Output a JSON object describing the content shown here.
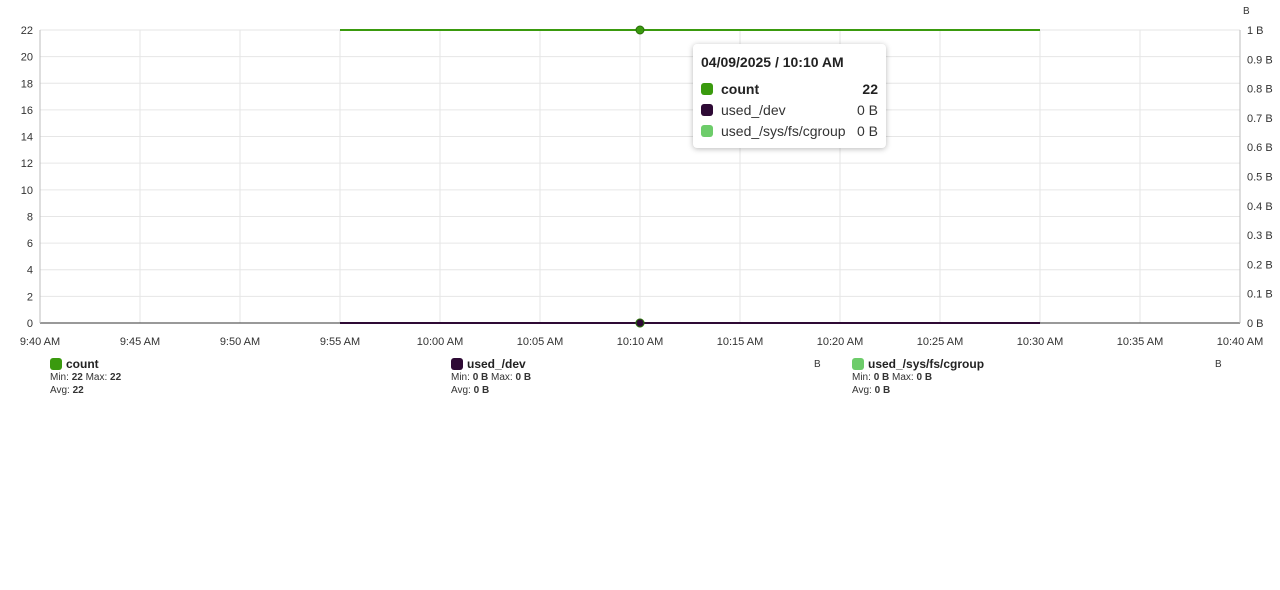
{
  "chart_data": {
    "type": "line",
    "x": [
      "9:40 AM",
      "9:45 AM",
      "9:50 AM",
      "9:55 AM",
      "10:00 AM",
      "10:05 AM",
      "10:10 AM",
      "10:15 AM",
      "10:20 AM",
      "10:25 AM",
      "10:30 AM",
      "10:35 AM",
      "10:40 AM"
    ],
    "y_left": {
      "ticks": [
        0,
        2,
        4,
        6,
        8,
        10,
        12,
        14,
        16,
        18,
        20,
        22
      ],
      "ylim": [
        0,
        22
      ]
    },
    "y_right": {
      "unit": "B",
      "ticks": [
        "0 B",
        "0.1 B",
        "0.2 B",
        "0.3 B",
        "0.4 B",
        "0.5 B",
        "0.6 B",
        "0.7 B",
        "0.8 B",
        "0.9 B",
        "1 B"
      ],
      "ylim": [
        0,
        1
      ]
    },
    "grid": true,
    "series": [
      {
        "name": "count",
        "color": "#3a9a0e",
        "axis": "left",
        "x_start": "9:55 AM",
        "x_end": "10:30 AM",
        "value": 22
      },
      {
        "name": "used_/dev",
        "color": "#2e0a35",
        "axis": "right",
        "x_start": "9:55 AM",
        "x_end": "10:30 AM",
        "value": 0
      },
      {
        "name": "used_/sys/fs/cgroup",
        "color": "#6dcc6a",
        "axis": "right",
        "x_start": "9:55 AM",
        "x_end": "10:30 AM",
        "value": 0
      }
    ],
    "highlight_x": "10:10 AM"
  },
  "legend": [
    {
      "name": "count",
      "min_label": "Min:",
      "min": "22",
      "max_label": "Max:",
      "max": "22",
      "avg_label": "Avg:",
      "avg": "22",
      "unit": ""
    },
    {
      "name": "used_/dev",
      "min_label": "Min:",
      "min": "0 B",
      "max_label": "Max:",
      "max": "0 B",
      "avg_label": "Avg:",
      "avg": "0 B",
      "unit": "B"
    },
    {
      "name": "used_/sys/fs/cgroup",
      "min_label": "Min:",
      "min": "0 B",
      "max_label": "Max:",
      "max": "0 B",
      "avg_label": "Avg:",
      "avg": "0 B",
      "unit": "B"
    }
  ],
  "tooltip": {
    "title": "04/09/2025 / 10:10 AM",
    "rows": [
      {
        "name": "count",
        "value": "22"
      },
      {
        "name": "used_/dev",
        "value": "0 B"
      },
      {
        "name": "used_/sys/fs/cgroup",
        "value": "0 B"
      }
    ]
  }
}
